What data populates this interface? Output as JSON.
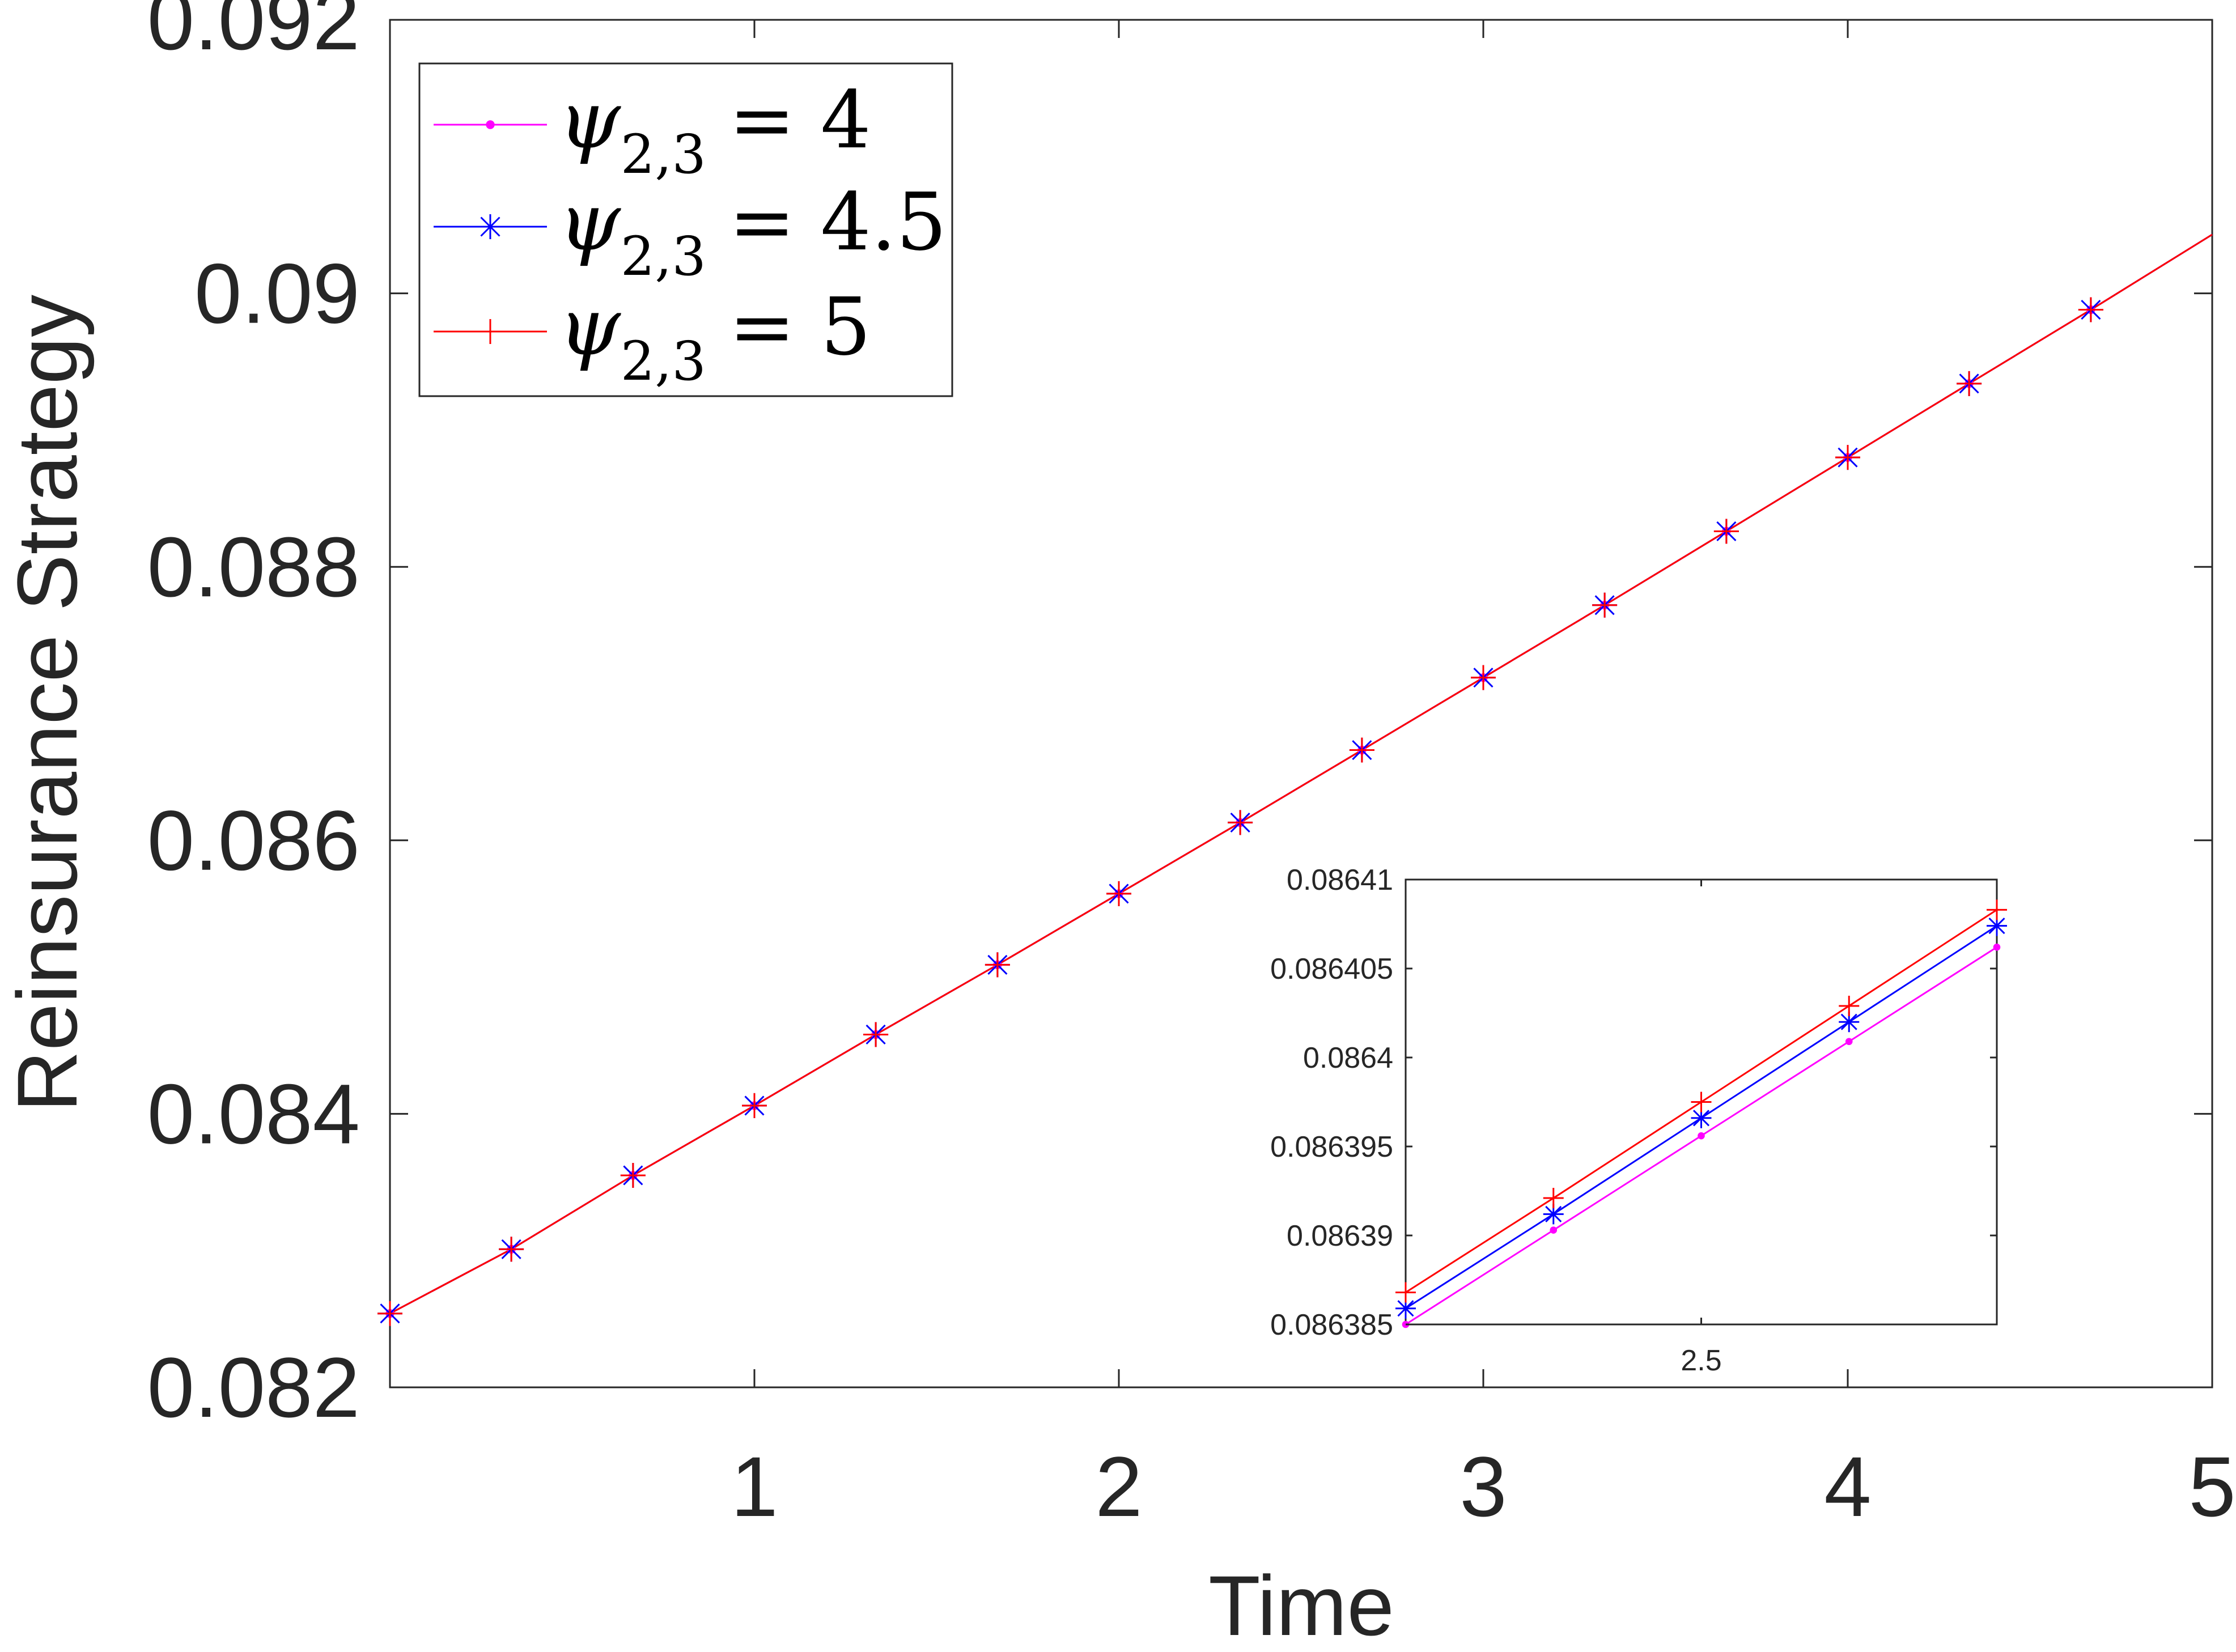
{
  "chart_data": [
    {
      "type": "line",
      "xlabel": "Time",
      "ylabel": "Reinsurance Strategy",
      "xlim": [
        0,
        5
      ],
      "ylim": [
        0.082,
        0.092
      ],
      "xticks": [
        1,
        2,
        3,
        4,
        5
      ],
      "xtick_labels": [
        "1",
        "2",
        "3",
        "4",
        "5"
      ],
      "yticks": [
        0.082,
        0.084,
        0.086,
        0.088,
        0.09,
        0.092
      ],
      "ytick_labels": [
        "0.082",
        "0.084",
        "0.086",
        "0.088",
        "0.09",
        "0.092"
      ],
      "grid": false,
      "legend_position": "top-left",
      "line_end": {
        "x": 5,
        "y": 0.09043
      },
      "series": [
        {
          "name": "ψ2,3 = 4",
          "label_sym": "ψ",
          "label_sub": "2,3",
          "label_val": "= 4",
          "color": "#ff00ff",
          "marker": "dot",
          "x": [
            0,
            0.333,
            0.667,
            1,
            1.333,
            1.667,
            2,
            2.333,
            2.667,
            3,
            3.333,
            3.667,
            4,
            4.333,
            4.667
          ],
          "values": [
            0.08254,
            0.08301,
            0.08355,
            0.08406,
            0.08458,
            0.08509,
            0.08561,
            0.08613,
            0.08666,
            0.08719,
            0.08772,
            0.08826,
            0.0888,
            0.08934,
            0.08988
          ]
        },
        {
          "name": "ψ2,3 = 4.5",
          "label_sym": "ψ",
          "label_sub": "2,3",
          "label_val": "= 4.5",
          "color": "#0000ff",
          "marker": "asterisk",
          "x": [
            0,
            0.333,
            0.667,
            1,
            1.333,
            1.667,
            2,
            2.333,
            2.667,
            3,
            3.333,
            3.667,
            4,
            4.333,
            4.667
          ],
          "values": [
            0.08254,
            0.08301,
            0.08355,
            0.08406,
            0.08458,
            0.08509,
            0.08561,
            0.08613,
            0.08666,
            0.08719,
            0.08772,
            0.08826,
            0.0888,
            0.08934,
            0.08988
          ]
        },
        {
          "name": "ψ2,3 = 5",
          "label_sym": "ψ",
          "label_sub": "2,3",
          "label_val": "= 5",
          "color": "#ff0000",
          "marker": "plus",
          "x": [
            0,
            0.333,
            0.667,
            1,
            1.333,
            1.667,
            2,
            2.333,
            2.667,
            3,
            3.333,
            3.667,
            4,
            4.333,
            4.667
          ],
          "values": [
            0.08254,
            0.08301,
            0.08355,
            0.08406,
            0.08458,
            0.08509,
            0.08561,
            0.08613,
            0.08666,
            0.08719,
            0.08772,
            0.08826,
            0.0888,
            0.08934,
            0.08988
          ]
        }
      ]
    },
    {
      "type": "line",
      "inset": true,
      "xlim": [
        2.3,
        2.7
      ],
      "ylim": [
        0.086385,
        0.08641
      ],
      "xticks": [
        2.5
      ],
      "xtick_labels": [
        "2.5"
      ],
      "yticks": [
        0.086385,
        0.08639,
        0.086395,
        0.0864,
        0.086405,
        0.08641
      ],
      "ytick_labels": [
        "0.086385",
        "0.08639",
        "0.086395",
        "0.0864",
        "0.086405",
        "0.08641"
      ],
      "grid": false,
      "series": [
        {
          "name": "ψ2,3 = 4",
          "color": "#ff00ff",
          "marker": "dot",
          "x": [
            2.3,
            2.4,
            2.5,
            2.6,
            2.7
          ],
          "values": [
            0.086385,
            0.0863903,
            0.0863956,
            0.0864009,
            0.0864062
          ]
        },
        {
          "name": "ψ2,3 = 4.5",
          "color": "#0000ff",
          "marker": "asterisk",
          "x": [
            2.3,
            2.4,
            2.5,
            2.6,
            2.7
          ],
          "values": [
            0.0863859,
            0.0863912,
            0.0863966,
            0.086402,
            0.0864074
          ]
        },
        {
          "name": "ψ2,3 = 5",
          "color": "#ff0000",
          "marker": "plus",
          "x": [
            2.3,
            2.4,
            2.5,
            2.6,
            2.7
          ],
          "values": [
            0.0863868,
            0.0863921,
            0.0863975,
            0.0864029,
            0.0864083
          ]
        }
      ]
    }
  ]
}
